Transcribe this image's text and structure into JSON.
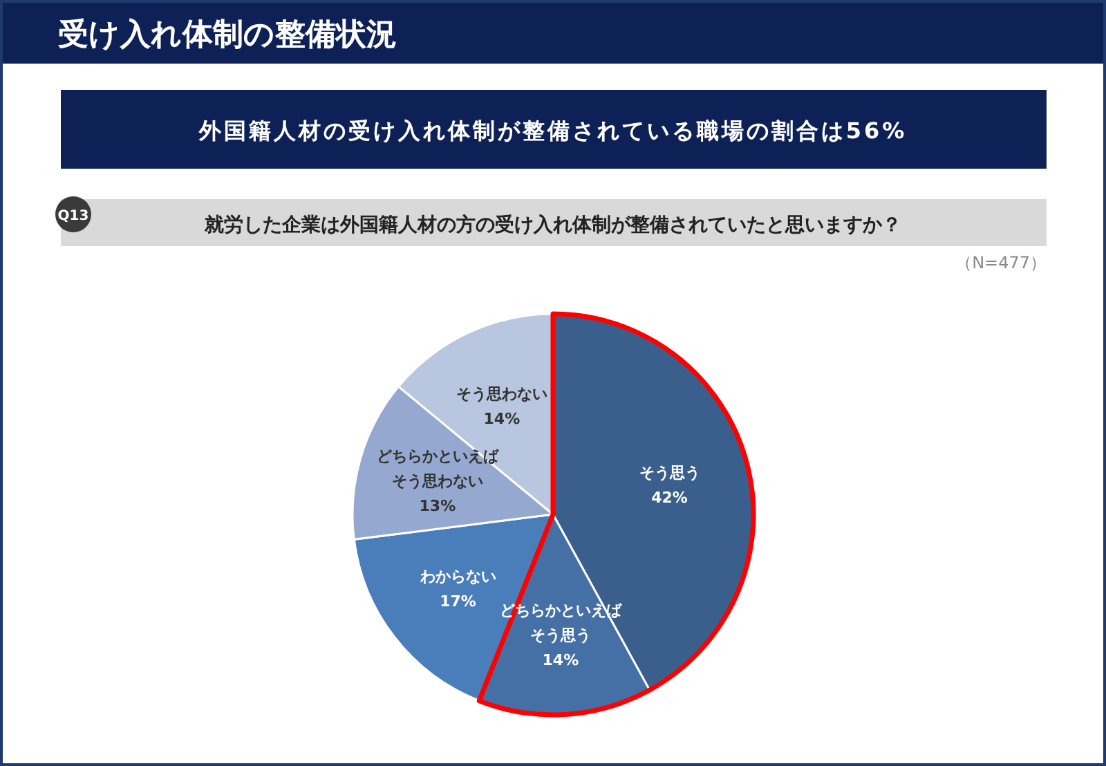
{
  "chart_data": {
    "type": "pie",
    "title": "受け入れ体制の整備状況",
    "subtitle": "外国籍人材の受け入れ体制が整備されている職場の割合は56%",
    "annotations": [
      "Q13",
      "就労した企業は外国籍人材の方の受け入れ体制が整備されていたと思いますか？",
      "（N=477）"
    ],
    "categories": [
      "そう思う",
      "どちらかといえばそう思う",
      "わからない",
      "どちらかといえばそう思わない",
      "そう思わない"
    ],
    "values": [
      42,
      14,
      17,
      13,
      14
    ],
    "colors": [
      "#3a5f8d",
      "#4470a5",
      "#4a7ebb",
      "#95a8cf",
      "#b9c6e0"
    ],
    "value_labels": [
      "42%",
      "14%",
      "17%",
      "13%",
      "14%"
    ]
  }
}
